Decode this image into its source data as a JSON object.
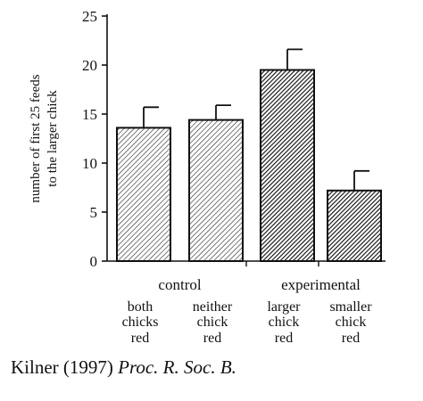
{
  "chart_data": {
    "type": "bar",
    "ylabel": [
      "number of first 25 feeds",
      "to the larger chick"
    ],
    "ylim": [
      0,
      25
    ],
    "yticks": [
      0,
      5,
      10,
      15,
      20,
      25
    ],
    "groups": [
      {
        "label": "control",
        "bars": [
          0,
          1
        ]
      },
      {
        "label": "experimental",
        "bars": [
          2,
          3
        ]
      }
    ],
    "bars": [
      {
        "label": [
          "both",
          "chicks",
          "red"
        ],
        "value": 13.6,
        "error": 2.1,
        "fill": "light-hatch"
      },
      {
        "label": [
          "neither",
          "chick",
          "red"
        ],
        "value": 14.4,
        "error": 1.5,
        "fill": "light-hatch"
      },
      {
        "label": [
          "larger",
          "chick",
          "red"
        ],
        "value": 19.5,
        "error": 2.1,
        "fill": "dark-hatch"
      },
      {
        "label": [
          "smaller",
          "chick",
          "red"
        ],
        "value": 7.2,
        "error": 2.0,
        "fill": "dark-hatch"
      }
    ],
    "grid": false,
    "legend": "none"
  },
  "citation": {
    "authors": "Kilner (1997)",
    "journal": "Proc. R. Soc. B."
  }
}
